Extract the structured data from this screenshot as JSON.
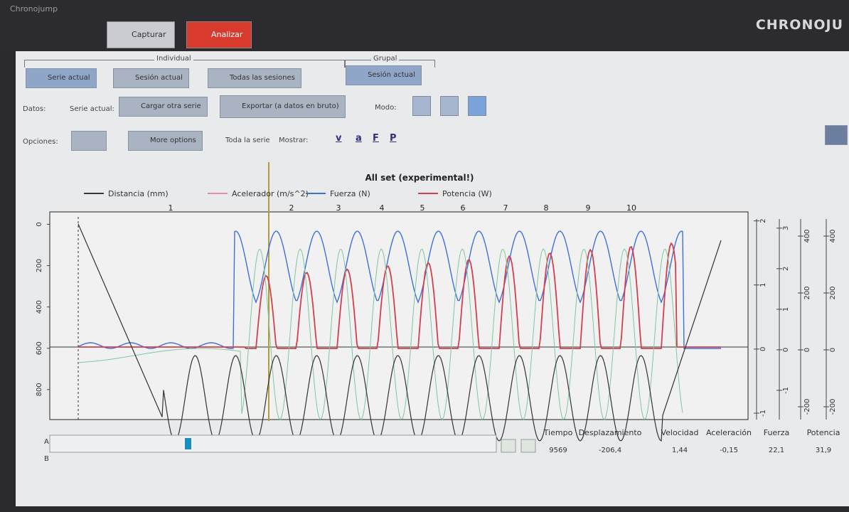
{
  "window_title": "Chronojump",
  "brand": "CHRONOJU",
  "tabs": [
    "Capturar",
    "Analizar"
  ],
  "individual": {
    "title": "Individual",
    "buttons": [
      "Serie actual",
      "Sesión actual",
      "Todas las sesiones"
    ]
  },
  "grupal": {
    "title": "Grupal",
    "buttons": [
      "Sesión actual"
    ]
  },
  "datos": {
    "label": "Datos:",
    "current": "Serie actual:",
    "load": "Cargar otra serie",
    "export": "Exportar (a datos en bruto)",
    "mode": "Modo:"
  },
  "opciones": {
    "label": "Opciones:",
    "more": "More options",
    "whole": "Toda la serie",
    "show": "Mostrar:",
    "toggles": [
      "v",
      "a",
      "F",
      "P"
    ]
  },
  "chart": {
    "title": "All set (experimental!)",
    "legend": [
      {
        "name": "Distancia (mm)",
        "color": "#3a3a3a"
      },
      {
        "name": "Acelerador (m/s^2)",
        "color": "#e58fb0"
      },
      {
        "name": "Fuerza (N)",
        "color": "#3f6fd8"
      },
      {
        "name": "Potencia (W)",
        "color": "#d0404e"
      }
    ],
    "reps": [
      "1",
      "2",
      "3",
      "4",
      "5",
      "6",
      "7",
      "8",
      "9",
      "10"
    ],
    "axes": [
      {
        "lim": [
          945,
          -60
        ],
        "ticks": [
          0,
          200,
          400,
          600,
          800
        ]
      },
      {
        "lim": [
          -1.1,
          2.14
        ],
        "ticks": [
          2,
          1,
          0,
          -1
        ]
      },
      {
        "lim": [
          -1.72,
          3.4
        ],
        "ticks": [
          3,
          2,
          1,
          0,
          -1
        ]
      },
      {
        "lim": [
          -245,
          485
        ],
        "ticks": [
          400,
          200,
          0,
          -200
        ]
      },
      {
        "lim": [
          -245,
          485
        ],
        "ticks": [
          400,
          200,
          0,
          -200
        ]
      }
    ]
  },
  "slider": {
    "labels": [
      "A",
      "B"
    ]
  },
  "table": {
    "headers": [
      "Tiempo",
      "Desplazamiento",
      "Velocidad",
      "Aceleración",
      "Fuerza",
      "Potencia"
    ],
    "rows": [
      [
        "9569",
        "-206,4",
        "1,44",
        "-0,15",
        "22,1",
        "31,9"
      ]
    ]
  }
}
